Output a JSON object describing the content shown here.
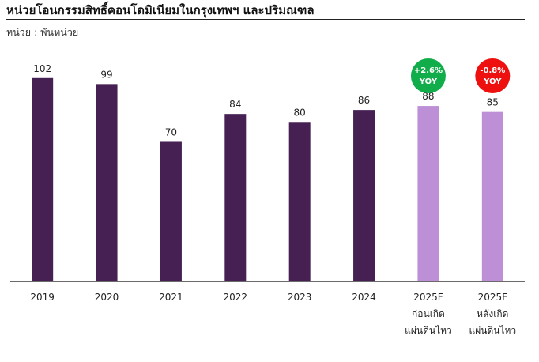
{
  "title": "หน่วยโอนกรรมสิทธิ์คอนโดมิเนียมในกรุงเทพฯ และปริมณฑล",
  "unit_label": "หน่วย : พันหน่วย",
  "chart_data": {
    "type": "bar",
    "categories": [
      [
        "2019"
      ],
      [
        "2020"
      ],
      [
        "2021"
      ],
      [
        "2022"
      ],
      [
        "2023"
      ],
      [
        "2024"
      ],
      [
        "2025F",
        "ก่อนเกิด",
        "แผ่นดินไหว"
      ],
      [
        "2025F",
        "หลังเกิด",
        "แผ่นดินไหว"
      ]
    ],
    "values": [
      102,
      99,
      70,
      84,
      80,
      86,
      88,
      85
    ],
    "bar_colors": [
      "#462052",
      "#462052",
      "#462052",
      "#462052",
      "#462052",
      "#462052",
      "#bc8fd7",
      "#bc8fd7"
    ],
    "ylim": [
      0,
      115
    ],
    "xlabel": "",
    "ylabel": "",
    "grid": false,
    "annotations": [
      {
        "category_index": 6,
        "lines": [
          "+2.6%",
          "YOY"
        ],
        "color": "#12ad4b"
      },
      {
        "category_index": 7,
        "lines": [
          "-0.8%",
          "YOY"
        ],
        "color": "#ee0f0f"
      }
    ]
  }
}
